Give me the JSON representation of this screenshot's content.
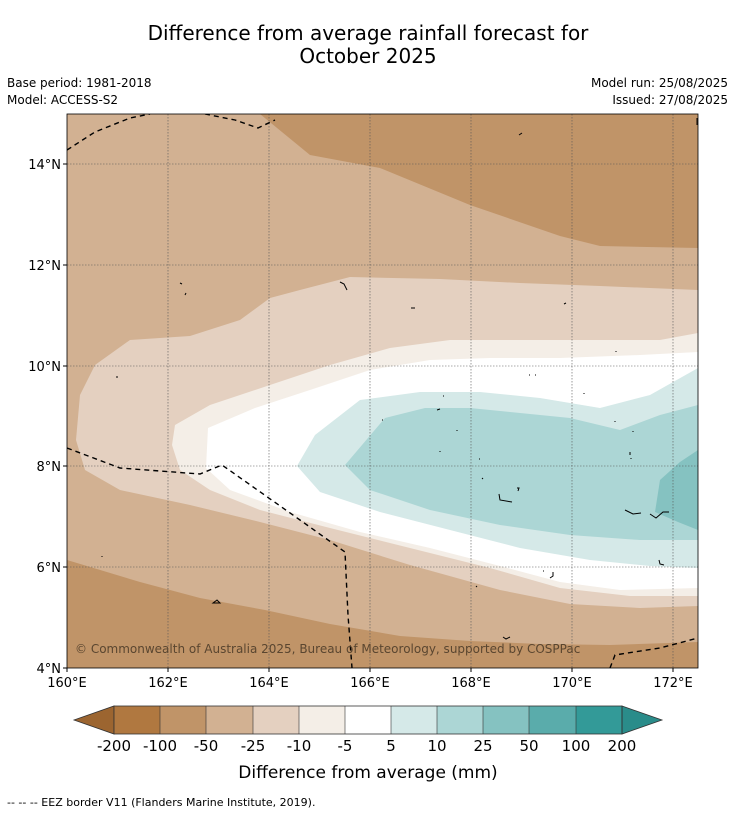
{
  "title_line1": "Difference from average rainfall forecast for",
  "title_line2": "October 2025",
  "base_period": "Base period: 1981-2018",
  "model": "Model: ACCESS-S2",
  "model_run": "Model run: 25/08/2025",
  "issued": "Issued: 27/08/2025",
  "copyright": "© Commonwealth of Australia 2025, Bureau of Meteorology, supported by COSPPac",
  "footnote": "--  --  -- EEZ border V11 (Flanders Marine Institute, 2019).",
  "map": {
    "lon_range": [
      160,
      172.5
    ],
    "lat_range": [
      4,
      15
    ],
    "lon_ticks": [
      "160°E",
      "162°E",
      "164°E",
      "166°E",
      "168°E",
      "170°E",
      "172°E"
    ],
    "lat_ticks": [
      "4°N",
      "6°N",
      "8°N",
      "10°N",
      "12°N",
      "14°N"
    ],
    "grid": true
  },
  "colorbar": {
    "title": "Difference from average (mm)",
    "labels": [
      "-200",
      "-100",
      "-50",
      "-25",
      "-10",
      "-5",
      "5",
      "10",
      "25",
      "50",
      "100",
      "200"
    ],
    "colors": [
      "#9c6530",
      "#b07840",
      "#c09468",
      "#d2b192",
      "#e4d0c0",
      "#f4eee7",
      "#ffffff",
      "#d5e9e8",
      "#acd6d5",
      "#85c2c1",
      "#5aacab",
      "#339a98",
      "#2a8c8a"
    ]
  }
}
